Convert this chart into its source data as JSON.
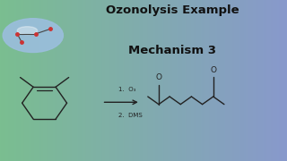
{
  "title_line1": "Ozonolysis Example",
  "title_line2": "Mechanism 3",
  "title_fontsize": 9.5,
  "title_color": "#111111",
  "reagent_line1": "1.  O₃",
  "reagent_line2": "2.  DMS",
  "reagent_fontsize": 5.0,
  "line_color": "#222222",
  "line_width": 1.0
}
